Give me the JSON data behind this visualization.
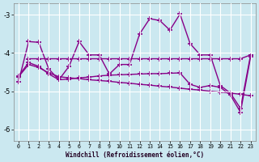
{
  "xlabel": "Windchill (Refroidissement éolien,°C)",
  "bg_color": "#cbe8f0",
  "line_color": "#880088",
  "grid_color": "#aaddee",
  "ylim": [
    -6.3,
    -2.7
  ],
  "xlim": [
    -0.5,
    23.5
  ],
  "yticks": [
    -6,
    -5,
    -4,
    -3
  ],
  "xticks": [
    0,
    1,
    2,
    3,
    4,
    5,
    6,
    7,
    8,
    9,
    10,
    11,
    12,
    13,
    14,
    15,
    16,
    17,
    18,
    19,
    20,
    21,
    22,
    23
  ],
  "series1_x": [
    0,
    1,
    2,
    3,
    4,
    5,
    6,
    7,
    8,
    9,
    10,
    11,
    12,
    13,
    14,
    15,
    16,
    17,
    18,
    19,
    20,
    21,
    22,
    23
  ],
  "series1_y": [
    -4.75,
    -3.7,
    -3.72,
    -4.42,
    -4.7,
    -4.35,
    -3.7,
    -4.05,
    -4.05,
    -4.55,
    -4.3,
    -4.3,
    -3.5,
    -3.1,
    -3.15,
    -3.4,
    -2.98,
    -3.75,
    -4.05,
    -4.05,
    -4.85,
    -5.05,
    -5.45,
    -4.05
  ],
  "series2_x": [
    1,
    2,
    3,
    4,
    5,
    6,
    7,
    8,
    9,
    10,
    11,
    12,
    13,
    14,
    15,
    16,
    17,
    18,
    19,
    20,
    21,
    22,
    23
  ],
  "series2_y": [
    -4.15,
    -4.15,
    -4.15,
    -4.15,
    -4.15,
    -4.15,
    -4.15,
    -4.15,
    -4.15,
    -4.15,
    -4.15,
    -4.15,
    -4.15,
    -4.15,
    -4.15,
    -4.15,
    -4.15,
    -4.15,
    -4.15,
    -4.15,
    -4.15,
    -4.15,
    -4.05
  ],
  "series3_x": [
    0,
    1,
    2,
    3,
    4,
    5,
    6,
    7,
    8,
    9,
    10,
    11,
    12,
    13,
    14,
    15,
    16,
    17,
    18,
    19,
    20,
    21,
    22,
    23
  ],
  "series3_y": [
    -4.6,
    -4.25,
    -4.35,
    -4.55,
    -4.7,
    -4.68,
    -4.65,
    -4.63,
    -4.6,
    -4.58,
    -4.57,
    -4.56,
    -4.55,
    -4.54,
    -4.54,
    -4.53,
    -4.52,
    -4.82,
    -4.9,
    -4.85,
    -4.9,
    -5.1,
    -5.55,
    -4.1
  ],
  "series4_x": [
    0,
    1,
    2,
    3,
    4,
    5,
    6,
    7,
    8,
    9,
    10,
    11,
    12,
    13,
    14,
    15,
    16,
    17,
    18,
    19,
    20,
    21,
    22,
    23
  ],
  "series4_y": [
    -4.62,
    -4.3,
    -4.38,
    -4.52,
    -4.62,
    -4.65,
    -4.67,
    -4.7,
    -4.72,
    -4.74,
    -4.77,
    -4.79,
    -4.82,
    -4.84,
    -4.87,
    -4.89,
    -4.92,
    -4.95,
    -4.97,
    -5.0,
    -5.02,
    -5.05,
    -5.08,
    -5.12
  ]
}
